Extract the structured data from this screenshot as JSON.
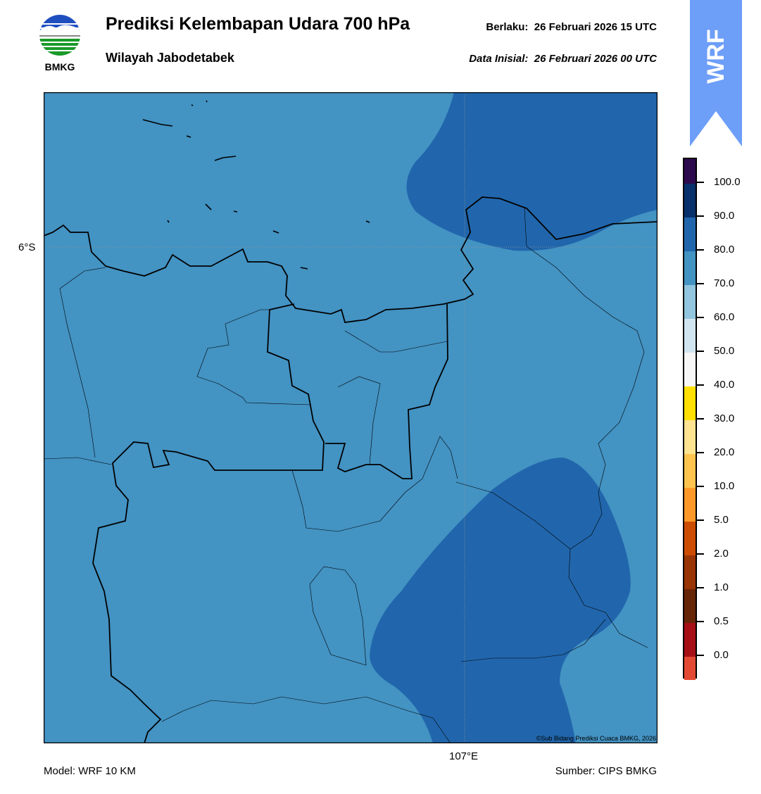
{
  "header": {
    "logo_text": "BMKG",
    "title": "Prediksi Kelembapan Udara 700 hPa",
    "subtitle": "Wilayah Jabodetabek",
    "valid_label": "Berlaku:",
    "valid_time": "26 Februari 2026 15 UTC",
    "init_label": "Data Inisial:",
    "init_time": "26 Februari 2026 00 UTC",
    "ribbon_text": "WRF"
  },
  "map": {
    "lat_label": "6°S",
    "lon_label": "107°E",
    "copyright": "©Sub Bidang Prediksi Cuaca BMKG, 2026",
    "field_colors": {
      "70-80": "#4393c3",
      "80-90": "#2166ac"
    }
  },
  "colorbar": {
    "ticks": [
      "100.0",
      "90.0",
      "80.0",
      "70.0",
      "60.0",
      "50.0",
      "40.0",
      "30.0",
      "20.0",
      "10.0",
      "5.0",
      "2.0",
      "1.0",
      "0.5",
      "0.0"
    ],
    "colors": [
      "#2d0a4e",
      "#08306b",
      "#2166ac",
      "#4393c3",
      "#92c5de",
      "#d1e5f0",
      "#f7f7f7",
      "#ffe000",
      "#fee391",
      "#fec44f",
      "#fe9929",
      "#cc4c02",
      "#993404",
      "#662506",
      "#a50f15",
      "#e34a33"
    ]
  },
  "footer": {
    "model": "Model: WRF 10 KM",
    "source": "Sumber: CIPS BMKG"
  }
}
